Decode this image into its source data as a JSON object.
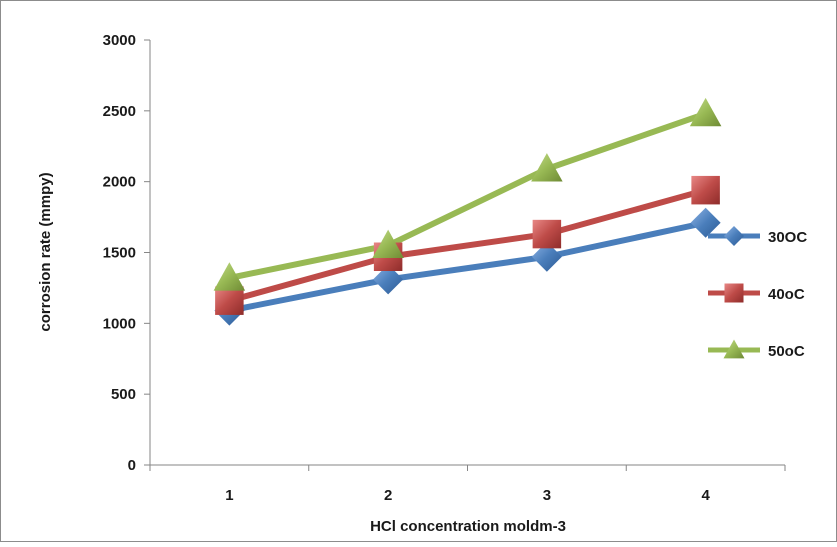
{
  "chart_data": {
    "type": "line",
    "title": "",
    "xlabel": "HCl concentration moldm-3",
    "ylabel": "corrosion rate (mmpy)",
    "categories": [
      "1",
      "2",
      "3",
      "4"
    ],
    "ylim": [
      0,
      3000
    ],
    "yticks": [
      "0",
      "500",
      "1000",
      "1500",
      "2000",
      "2500",
      "3000"
    ],
    "grid": false,
    "legend_position": "right",
    "series": [
      {
        "name": "30OC",
        "values": [
          1090,
          1310,
          1470,
          1710
        ],
        "color": "#4a7ebb",
        "marker": "diamond"
      },
      {
        "name": "40oC",
        "values": [
          1160,
          1470,
          1630,
          1940
        ],
        "color": "#be4b48",
        "marker": "square"
      },
      {
        "name": "50oC",
        "values": [
          1320,
          1550,
          2090,
          2480
        ],
        "color": "#98b954",
        "marker": "triangle"
      }
    ]
  }
}
